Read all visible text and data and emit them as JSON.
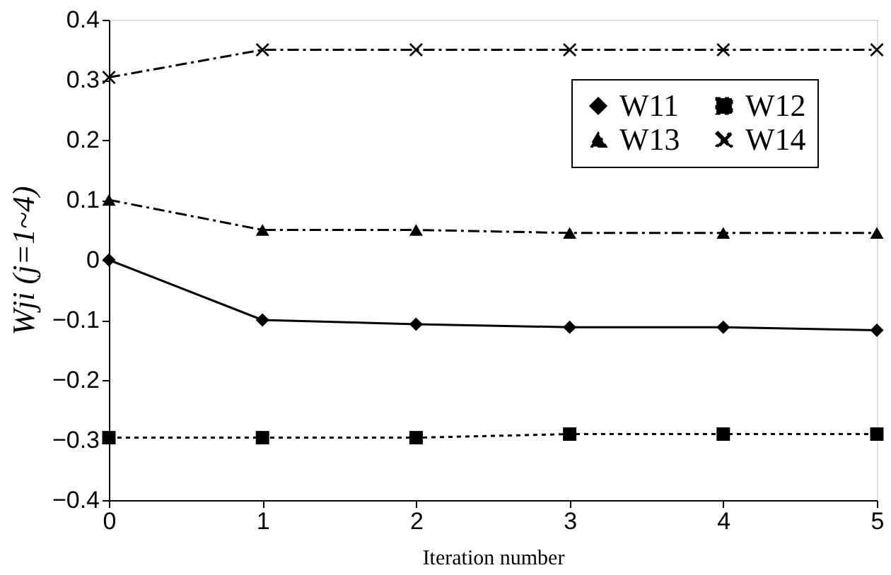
{
  "chart_data": {
    "type": "line",
    "xlabel": "Iteration number",
    "ylabel": "Wji (j=1~4)",
    "x": [
      0,
      1,
      2,
      3,
      4,
      5
    ],
    "series": [
      {
        "name": "W11",
        "color": "#000000",
        "marker": "diamond",
        "line_style": "solid",
        "values": [
          0,
          -0.1,
          -0.107,
          -0.112,
          -0.112,
          -0.117
        ]
      },
      {
        "name": "W12",
        "color": "#000000",
        "marker": "square",
        "line_style": "dotted",
        "values": [
          -0.296,
          -0.296,
          -0.296,
          -0.29,
          -0.29,
          -0.29
        ]
      },
      {
        "name": "W13",
        "color": "#000000",
        "marker": "triangle",
        "line_style": "dashed",
        "values": [
          0.1,
          0.05,
          0.05,
          0.045,
          0.045,
          0.045
        ]
      },
      {
        "name": "W14",
        "color": "#000000",
        "marker": "cross",
        "line_style": "dashed",
        "values": [
          0.304,
          0.35,
          0.35,
          0.35,
          0.35,
          0.35
        ]
      }
    ],
    "xlim": [
      0,
      5
    ],
    "xticks": [
      0,
      1,
      2,
      3,
      4,
      5
    ],
    "ylim": [
      -0.4,
      0.4
    ],
    "yticks": [
      -0.4,
      -0.3,
      -0.2,
      -0.1,
      0,
      0.1,
      0.2,
      0.3,
      0.4
    ],
    "grid": false,
    "legend": "top right"
  }
}
